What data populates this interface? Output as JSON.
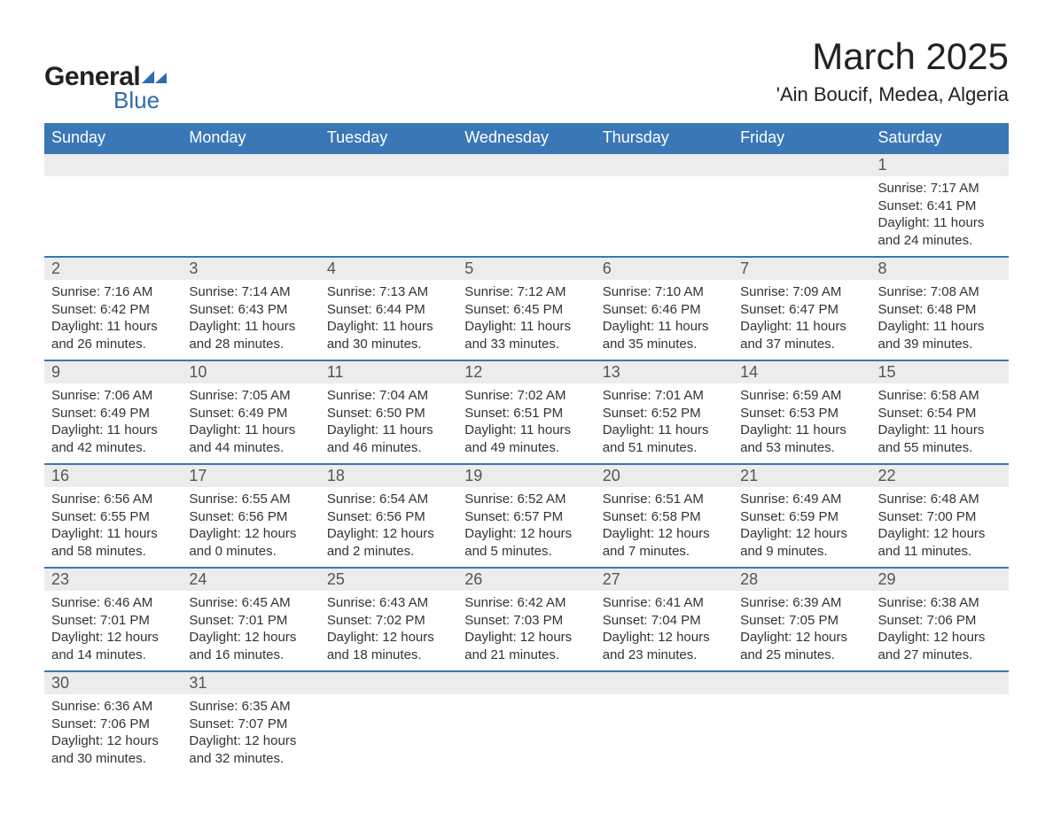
{
  "logo": {
    "general": "General",
    "blue": "Blue",
    "flag_color": "#2e6bb0"
  },
  "title": {
    "month": "March 2025",
    "location": "'Ain Boucif, Medea, Algeria"
  },
  "colors": {
    "header_bg": "#3a77b7",
    "header_text": "#ffffff",
    "daynum_bg": "#ececec",
    "row_border": "#3a77b7",
    "body_text": "#333333"
  },
  "typography": {
    "month_fontsize": 42,
    "location_fontsize": 22,
    "weekday_fontsize": 18,
    "daynum_fontsize": 18,
    "cell_fontsize": 15
  },
  "weekdays": [
    "Sunday",
    "Monday",
    "Tuesday",
    "Wednesday",
    "Thursday",
    "Friday",
    "Saturday"
  ],
  "calendar": {
    "start_day_index": 6,
    "days": [
      {
        "n": 1,
        "sunrise": "7:17 AM",
        "sunset": "6:41 PM",
        "daylight": "11 hours and 24 minutes."
      },
      {
        "n": 2,
        "sunrise": "7:16 AM",
        "sunset": "6:42 PM",
        "daylight": "11 hours and 26 minutes."
      },
      {
        "n": 3,
        "sunrise": "7:14 AM",
        "sunset": "6:43 PM",
        "daylight": "11 hours and 28 minutes."
      },
      {
        "n": 4,
        "sunrise": "7:13 AM",
        "sunset": "6:44 PM",
        "daylight": "11 hours and 30 minutes."
      },
      {
        "n": 5,
        "sunrise": "7:12 AM",
        "sunset": "6:45 PM",
        "daylight": "11 hours and 33 minutes."
      },
      {
        "n": 6,
        "sunrise": "7:10 AM",
        "sunset": "6:46 PM",
        "daylight": "11 hours and 35 minutes."
      },
      {
        "n": 7,
        "sunrise": "7:09 AM",
        "sunset": "6:47 PM",
        "daylight": "11 hours and 37 minutes."
      },
      {
        "n": 8,
        "sunrise": "7:08 AM",
        "sunset": "6:48 PM",
        "daylight": "11 hours and 39 minutes."
      },
      {
        "n": 9,
        "sunrise": "7:06 AM",
        "sunset": "6:49 PM",
        "daylight": "11 hours and 42 minutes."
      },
      {
        "n": 10,
        "sunrise": "7:05 AM",
        "sunset": "6:49 PM",
        "daylight": "11 hours and 44 minutes."
      },
      {
        "n": 11,
        "sunrise": "7:04 AM",
        "sunset": "6:50 PM",
        "daylight": "11 hours and 46 minutes."
      },
      {
        "n": 12,
        "sunrise": "7:02 AM",
        "sunset": "6:51 PM",
        "daylight": "11 hours and 49 minutes."
      },
      {
        "n": 13,
        "sunrise": "7:01 AM",
        "sunset": "6:52 PM",
        "daylight": "11 hours and 51 minutes."
      },
      {
        "n": 14,
        "sunrise": "6:59 AM",
        "sunset": "6:53 PM",
        "daylight": "11 hours and 53 minutes."
      },
      {
        "n": 15,
        "sunrise": "6:58 AM",
        "sunset": "6:54 PM",
        "daylight": "11 hours and 55 minutes."
      },
      {
        "n": 16,
        "sunrise": "6:56 AM",
        "sunset": "6:55 PM",
        "daylight": "11 hours and 58 minutes."
      },
      {
        "n": 17,
        "sunrise": "6:55 AM",
        "sunset": "6:56 PM",
        "daylight": "12 hours and 0 minutes."
      },
      {
        "n": 18,
        "sunrise": "6:54 AM",
        "sunset": "6:56 PM",
        "daylight": "12 hours and 2 minutes."
      },
      {
        "n": 19,
        "sunrise": "6:52 AM",
        "sunset": "6:57 PM",
        "daylight": "12 hours and 5 minutes."
      },
      {
        "n": 20,
        "sunrise": "6:51 AM",
        "sunset": "6:58 PM",
        "daylight": "12 hours and 7 minutes."
      },
      {
        "n": 21,
        "sunrise": "6:49 AM",
        "sunset": "6:59 PM",
        "daylight": "12 hours and 9 minutes."
      },
      {
        "n": 22,
        "sunrise": "6:48 AM",
        "sunset": "7:00 PM",
        "daylight": "12 hours and 11 minutes."
      },
      {
        "n": 23,
        "sunrise": "6:46 AM",
        "sunset": "7:01 PM",
        "daylight": "12 hours and 14 minutes."
      },
      {
        "n": 24,
        "sunrise": "6:45 AM",
        "sunset": "7:01 PM",
        "daylight": "12 hours and 16 minutes."
      },
      {
        "n": 25,
        "sunrise": "6:43 AM",
        "sunset": "7:02 PM",
        "daylight": "12 hours and 18 minutes."
      },
      {
        "n": 26,
        "sunrise": "6:42 AM",
        "sunset": "7:03 PM",
        "daylight": "12 hours and 21 minutes."
      },
      {
        "n": 27,
        "sunrise": "6:41 AM",
        "sunset": "7:04 PM",
        "daylight": "12 hours and 23 minutes."
      },
      {
        "n": 28,
        "sunrise": "6:39 AM",
        "sunset": "7:05 PM",
        "daylight": "12 hours and 25 minutes."
      },
      {
        "n": 29,
        "sunrise": "6:38 AM",
        "sunset": "7:06 PM",
        "daylight": "12 hours and 27 minutes."
      },
      {
        "n": 30,
        "sunrise": "6:36 AM",
        "sunset": "7:06 PM",
        "daylight": "12 hours and 30 minutes."
      },
      {
        "n": 31,
        "sunrise": "6:35 AM",
        "sunset": "7:07 PM",
        "daylight": "12 hours and 32 minutes."
      }
    ],
    "labels": {
      "sunrise": "Sunrise:",
      "sunset": "Sunset:",
      "daylight": "Daylight:"
    }
  }
}
